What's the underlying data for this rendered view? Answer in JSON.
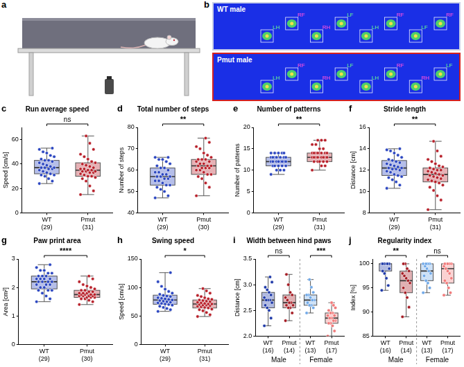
{
  "schematic": {
    "letter": "a"
  },
  "paw_prints": {
    "letter": "b",
    "runs": [
      {
        "label": "WT male",
        "color": "#c8cfe8",
        "paws": [
          "LH",
          "RF",
          "RH",
          "LF",
          "LH",
          "RF",
          "LF",
          "RF"
        ]
      },
      {
        "label": "Pmut male",
        "color": "#d42020",
        "paws": [
          "LH",
          "RF",
          "RH",
          "LF",
          "LH",
          "RF",
          "RH",
          "LF"
        ]
      }
    ]
  },
  "chart_data": [
    {
      "letter": "c",
      "type": "box",
      "title": "Run average speed",
      "y_label": "Speed [cm/s]",
      "ylim": [
        0,
        70
      ],
      "yticks": [
        0,
        20,
        40,
        60
      ],
      "groups": [
        {
          "significance": "ns",
          "boxes": [
            {
              "label": "WT (29)",
              "color": "#2a45c0",
              "min": 24,
              "q1": 32,
              "median": 37,
              "q3": 43,
              "max": 53,
              "points": [
                24,
                26,
                28,
                30,
                31,
                31,
                32,
                33,
                34,
                35,
                36,
                36,
                37,
                37,
                37,
                38,
                39,
                40,
                41,
                42,
                43,
                43,
                44,
                46,
                47,
                49,
                50,
                52,
                53
              ]
            },
            {
              "label": "Pmut (31)",
              "color": "#b8202a",
              "min": 15,
              "q1": 30,
              "median": 35,
              "q3": 41,
              "max": 63,
              "points": [
                15,
                18,
                22,
                26,
                28,
                29,
                30,
                30,
                31,
                32,
                33,
                33,
                34,
                34,
                34,
                35,
                35,
                36,
                36,
                37,
                38,
                39,
                40,
                41,
                42,
                44,
                46,
                48,
                52,
                57,
                63
              ]
            }
          ]
        }
      ]
    },
    {
      "letter": "d",
      "type": "box",
      "title": "Total number of steps",
      "y_label": "Number of steps",
      "ylim": [
        40,
        80
      ],
      "yticks": [
        40,
        50,
        60,
        70,
        80
      ],
      "groups": [
        {
          "significance": "**",
          "boxes": [
            {
              "label": "WT (29)",
              "color": "#2a45c0",
              "min": 47,
              "q1": 53,
              "median": 57,
              "q3": 61,
              "max": 66,
              "points": [
                47,
                48,
                50,
                51,
                52,
                53,
                53,
                54,
                55,
                55,
                56,
                56,
                57,
                57,
                57,
                58,
                58,
                59,
                59,
                60,
                61,
                61,
                62,
                63,
                64,
                65,
                65,
                66,
                66
              ]
            },
            {
              "label": "Pmut (30)",
              "color": "#b8202a",
              "min": 48,
              "q1": 58,
              "median": 62,
              "q3": 65,
              "max": 75,
              "points": [
                48,
                52,
                54,
                56,
                57,
                58,
                58,
                59,
                60,
                60,
                61,
                61,
                61,
                62,
                62,
                62,
                63,
                63,
                64,
                64,
                65,
                65,
                65,
                66,
                67,
                68,
                70,
                71,
                73,
                75
              ]
            }
          ]
        }
      ]
    },
    {
      "letter": "e",
      "type": "box",
      "title": "Number of patterns",
      "y_label": "Number of patterns",
      "ylim": [
        0,
        20
      ],
      "yticks": [
        0,
        5,
        10,
        15,
        20
      ],
      "groups": [
        {
          "significance": "**",
          "boxes": [
            {
              "label": "WT (29)",
              "color": "#2a45c0",
              "min": 9,
              "q1": 11,
              "median": 12,
              "q3": 13,
              "max": 14,
              "points": [
                9,
                10,
                10,
                10,
                11,
                11,
                11,
                11,
                11,
                12,
                12,
                12,
                12,
                12,
                12,
                12,
                12,
                13,
                13,
                13,
                13,
                13,
                13,
                13,
                14,
                14,
                14,
                14,
                14
              ]
            },
            {
              "label": "Pmut (31)",
              "color": "#b8202a",
              "min": 10,
              "q1": 12,
              "median": 13,
              "q3": 14,
              "max": 17,
              "points": [
                10,
                11,
                11,
                12,
                12,
                12,
                12,
                12,
                13,
                13,
                13,
                13,
                13,
                13,
                13,
                13,
                14,
                14,
                14,
                14,
                14,
                14,
                14,
                14,
                15,
                15,
                16,
                16,
                17,
                17,
                17
              ]
            }
          ]
        }
      ]
    },
    {
      "letter": "f",
      "type": "box",
      "title": "Stride length",
      "y_label": "Distance [cm]",
      "ylim": [
        8,
        16
      ],
      "yticks": [
        8,
        10,
        12,
        14,
        16
      ],
      "groups": [
        {
          "significance": "**",
          "boxes": [
            {
              "label": "WT (29)",
              "color": "#2a45c0",
              "min": 10.3,
              "q1": 11.5,
              "median": 12.2,
              "q3": 12.9,
              "max": 14.0,
              "points": [
                10.3,
                10.6,
                10.9,
                11.1,
                11.3,
                11.4,
                11.5,
                11.6,
                11.8,
                11.9,
                12.0,
                12.1,
                12.1,
                12.2,
                12.2,
                12.3,
                12.4,
                12.5,
                12.6,
                12.7,
                12.8,
                12.9,
                13.0,
                13.2,
                13.4,
                13.6,
                13.8,
                13.9,
                14.0
              ]
            },
            {
              "label": "Pmut (31)",
              "color": "#b8202a",
              "min": 8.3,
              "q1": 10.9,
              "median": 11.6,
              "q3": 12.2,
              "max": 14.7,
              "points": [
                8.3,
                9.2,
                9.6,
                10.1,
                10.4,
                10.6,
                10.8,
                10.9,
                11.0,
                11.1,
                11.2,
                11.3,
                11.4,
                11.5,
                11.5,
                11.6,
                11.7,
                11.8,
                11.9,
                12.0,
                12.0,
                12.1,
                12.2,
                12.3,
                12.4,
                12.6,
                12.8,
                13.0,
                13.3,
                13.8,
                14.7
              ]
            }
          ]
        }
      ]
    },
    {
      "letter": "g",
      "type": "box",
      "title": "Paw print area",
      "y_label": "Area [cm²]",
      "ylim": [
        0,
        3
      ],
      "yticks": [
        0,
        1,
        2,
        3
      ],
      "groups": [
        {
          "significance": "****",
          "boxes": [
            {
              "label": "WT (29)",
              "color": "#2a45c0",
              "min": 1.5,
              "q1": 1.95,
              "median": 2.2,
              "q3": 2.4,
              "max": 2.8,
              "points": [
                1.5,
                1.6,
                1.7,
                1.8,
                1.9,
                1.9,
                1.9,
                2.0,
                2.0,
                2.1,
                2.1,
                2.1,
                2.2,
                2.2,
                2.2,
                2.2,
                2.3,
                2.3,
                2.3,
                2.3,
                2.4,
                2.4,
                2.4,
                2.5,
                2.5,
                2.6,
                2.6,
                2.7,
                2.8
              ]
            },
            {
              "label": "Pmut (30)",
              "color": "#b8202a",
              "min": 1.4,
              "q1": 1.65,
              "median": 1.75,
              "q3": 1.9,
              "max": 2.4,
              "points": [
                1.4,
                1.5,
                1.55,
                1.6,
                1.6,
                1.65,
                1.65,
                1.65,
                1.7,
                1.7,
                1.7,
                1.7,
                1.75,
                1.75,
                1.75,
                1.75,
                1.8,
                1.8,
                1.8,
                1.85,
                1.85,
                1.9,
                1.9,
                1.95,
                2.0,
                2.05,
                2.1,
                2.2,
                2.3,
                2.4
              ]
            }
          ]
        }
      ]
    },
    {
      "letter": "h",
      "type": "box",
      "title": "Swing speed",
      "y_label": "Speed [cm/s]",
      "ylim": [
        0,
        150
      ],
      "yticks": [
        0,
        50,
        100,
        150
      ],
      "groups": [
        {
          "significance": "*",
          "boxes": [
            {
              "label": "WT (29)",
              "color": "#2a45c0",
              "min": 58,
              "q1": 70.5,
              "median": 78,
              "q3": 86.5,
              "max": 126,
              "points": [
                58,
                61,
                63,
                65,
                67,
                69,
                70,
                71,
                72,
                73,
                74,
                75,
                76,
                77,
                78,
                79,
                80,
                81,
                82,
                84,
                85,
                86,
                88,
                90,
                93,
                97,
                102,
                110,
                126
              ]
            },
            {
              "label": "Pmut (31)",
              "color": "#b8202a",
              "min": 49,
              "q1": 64,
              "median": 71,
              "q3": 78,
              "max": 98,
              "points": [
                49,
                52,
                56,
                59,
                61,
                62,
                64,
                65,
                66,
                67,
                68,
                69,
                69,
                70,
                71,
                71,
                72,
                73,
                74,
                75,
                76,
                77,
                78,
                79,
                80,
                82,
                84,
                86,
                90,
                94,
                98
              ]
            }
          ]
        }
      ]
    },
    {
      "letter": "i",
      "type": "box",
      "title": "Width between hind paws",
      "y_label": "Distance [cm]",
      "ylim": [
        2.0,
        3.5
      ],
      "yticks": [
        {
          "value": 2.0,
          "label": "2.0"
        },
        {
          "value": 2.5,
          "label": "2.5"
        },
        {
          "value": 3.0,
          "label": "3.0"
        },
        {
          "value": 3.5,
          "label": "3.5"
        }
      ],
      "groups": [
        {
          "name": "Male",
          "significance": "ns",
          "boxes": [
            {
              "label": "WT (16)",
              "color": "#1f3aa8",
              "min": 2.2,
              "q1": 2.55,
              "median": 2.7,
              "q3": 2.85,
              "max": 3.15,
              "points": [
                2.2,
                2.35,
                2.5,
                2.55,
                2.6,
                2.65,
                2.7,
                2.7,
                2.7,
                2.75,
                2.8,
                2.85,
                2.9,
                2.95,
                3.05,
                3.15
              ]
            },
            {
              "label": "Pmut (14)",
              "color": "#a51c24",
              "min": 2.3,
              "q1": 2.55,
              "median": 2.65,
              "q3": 2.8,
              "max": 3.2,
              "points": [
                2.3,
                2.45,
                2.55,
                2.55,
                2.6,
                2.6,
                2.65,
                2.65,
                2.7,
                2.75,
                2.8,
                2.85,
                3.0,
                3.2
              ]
            }
          ]
        },
        {
          "name": "Female",
          "significance": "***",
          "boxes": [
            {
              "label": "WT (13)",
              "color": "#6fa8e8",
              "min": 2.45,
              "q1": 2.6,
              "median": 2.7,
              "q3": 2.8,
              "max": 3.1,
              "points": [
                2.45,
                2.55,
                2.6,
                2.6,
                2.65,
                2.7,
                2.7,
                2.75,
                2.8,
                2.8,
                2.85,
                2.95,
                3.1
              ]
            },
            {
              "label": "Pmut (17)",
              "color": "#f07a7a",
              "min": 2.0,
              "q1": 2.25,
              "median": 2.35,
              "q3": 2.45,
              "max": 2.65,
              "points": [
                2.0,
                2.1,
                2.2,
                2.25,
                2.25,
                2.3,
                2.3,
                2.35,
                2.35,
                2.4,
                2.4,
                2.45,
                2.45,
                2.5,
                2.55,
                2.6,
                2.65
              ]
            }
          ]
        }
      ]
    },
    {
      "letter": "j",
      "type": "box",
      "title": "Regularity index",
      "y_label": "Index [%]",
      "ylim": [
        85,
        101
      ],
      "yticks": [
        85,
        90,
        95,
        100
      ],
      "groups": [
        {
          "name": "Male",
          "significance": "**",
          "boxes": [
            {
              "label": "WT (16)",
              "color": "#1f3aa8",
              "min": 94.5,
              "q1": 98.5,
              "median": 100,
              "q3": 100,
              "max": 100,
              "points": [
                94.5,
                95.5,
                97,
                98,
                98.5,
                99,
                100,
                100,
                100,
                100,
                100,
                100,
                100,
                100,
                100,
                100
              ]
            },
            {
              "label": "Pmut (14)",
              "color": "#a51c24",
              "min": 89,
              "q1": 94,
              "median": 96.5,
              "q3": 98.5,
              "max": 100,
              "points": [
                89,
                91,
                93,
                94,
                95,
                96,
                96.5,
                97,
                97.5,
                98,
                98.5,
                99,
                100,
                100
              ]
            }
          ]
        },
        {
          "name": "Female",
          "significance": "ns",
          "boxes": [
            {
              "label": "WT (13)",
              "color": "#6fa8e8",
              "min": 94,
              "q1": 96.5,
              "median": 98.5,
              "q3": 100,
              "max": 100,
              "points": [
                94,
                95,
                96,
                96.5,
                97.5,
                98,
                98.5,
                99,
                99.5,
                100,
                100,
                100,
                100
              ]
            },
            {
              "label": "Pmut (17)",
              "color": "#f07a7a",
              "min": 93.5,
              "q1": 96,
              "median": 99,
              "q3": 100,
              "max": 100,
              "points": [
                93.5,
                94,
                95,
                96,
                96.5,
                97,
                98,
                98.5,
                99,
                99.5,
                100,
                100,
                100,
                100,
                100,
                100,
                100
              ]
            }
          ]
        }
      ]
    }
  ]
}
